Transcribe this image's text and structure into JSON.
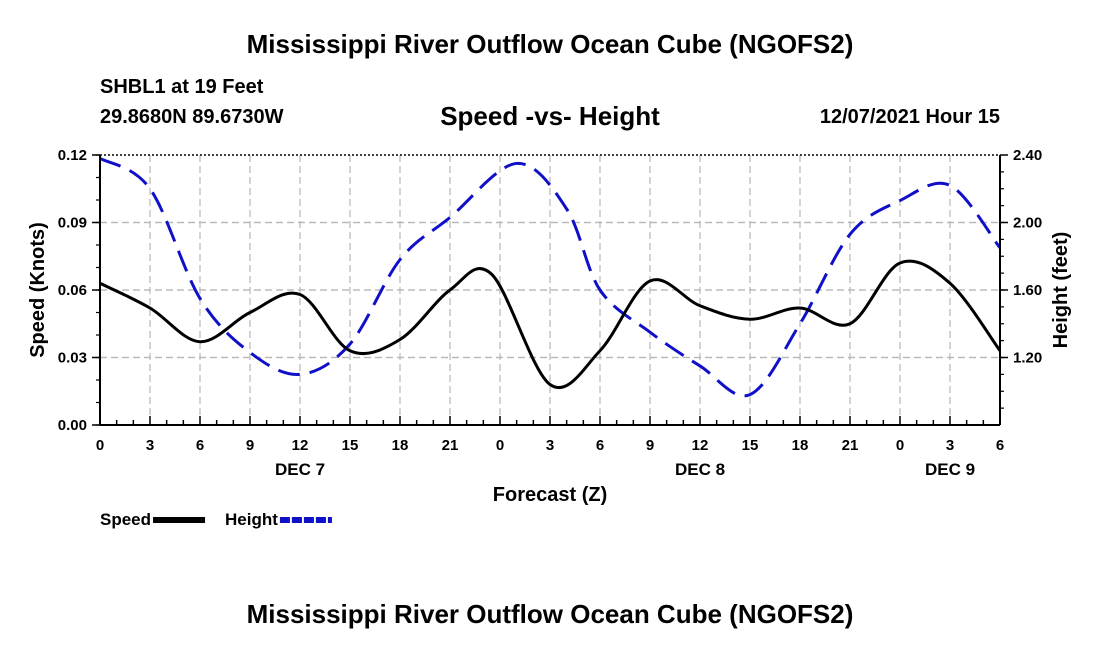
{
  "header": {
    "title": "Mississippi River Outflow Ocean Cube (NGOFS2)",
    "station": "SHBL1 at 19 Feet",
    "location": "29.8680N  89.6730W",
    "subtitle": "Speed -vs- Height",
    "datetime": "12/07/2021 Hour 15"
  },
  "footer": {
    "title": "Mississippi River Outflow Ocean Cube (NGOFS2)"
  },
  "chart_data": {
    "type": "line",
    "title": "Speed -vs- Height",
    "xlabel": "Forecast (Z)",
    "ylabel": "Speed (Knots)",
    "y2label": "Height (feet)",
    "xlim": [
      0,
      54
    ],
    "ylim": [
      0,
      0.12
    ],
    "y2lim": [
      0.8,
      2.4
    ],
    "x_ticks": [
      0,
      3,
      6,
      9,
      12,
      15,
      18,
      21,
      24,
      27,
      30,
      33,
      36,
      39,
      42,
      45,
      48,
      51,
      54
    ],
    "x_tick_labels": [
      "0",
      "3",
      "6",
      "9",
      "12",
      "15",
      "18",
      "21",
      "0",
      "3",
      "6",
      "9",
      "12",
      "15",
      "18",
      "21",
      "0",
      "3",
      "6"
    ],
    "date_labels": [
      {
        "x": 12,
        "label": "DEC 7"
      },
      {
        "x": 36,
        "label": "DEC 8"
      },
      {
        "x": 51,
        "label": "DEC 9"
      }
    ],
    "y_ticks": [
      0,
      0.03,
      0.06,
      0.09,
      0.12
    ],
    "y_tick_labels": [
      "0.00",
      "0.03",
      "0.06",
      "0.09",
      "0.12"
    ],
    "y2_ticks": [
      1.2,
      1.6,
      2.0,
      2.4
    ],
    "y2_tick_labels": [
      "1.20",
      "1.60",
      "2.00",
      "2.40"
    ],
    "grid": true,
    "legend": {
      "placement": "bottom-left"
    },
    "series": [
      {
        "name": "Speed",
        "axis": "left",
        "color": "#000000",
        "dash": "solid",
        "x": [
          0,
          3,
          6,
          9,
          12,
          15,
          18,
          21,
          23.5,
          27,
          30,
          33,
          36,
          39,
          42,
          45,
          48,
          51,
          54
        ],
        "values": [
          0.063,
          0.052,
          0.037,
          0.05,
          0.058,
          0.033,
          0.038,
          0.06,
          0.067,
          0.018,
          0.033,
          0.064,
          0.053,
          0.047,
          0.052,
          0.045,
          0.072,
          0.063,
          0.033
        ]
      },
      {
        "name": "Height",
        "axis": "right",
        "color": "#1010c8",
        "dash": "dashed",
        "x": [
          0,
          3,
          6,
          9,
          12,
          15,
          18,
          21,
          25,
          28,
          30,
          33,
          36,
          39,
          42,
          45,
          48,
          51,
          54
        ],
        "values": [
          2.38,
          2.2,
          1.55,
          1.23,
          1.1,
          1.28,
          1.78,
          2.03,
          2.35,
          2.08,
          1.6,
          1.35,
          1.15,
          0.98,
          1.4,
          1.93,
          2.13,
          2.22,
          1.85
        ]
      }
    ]
  }
}
